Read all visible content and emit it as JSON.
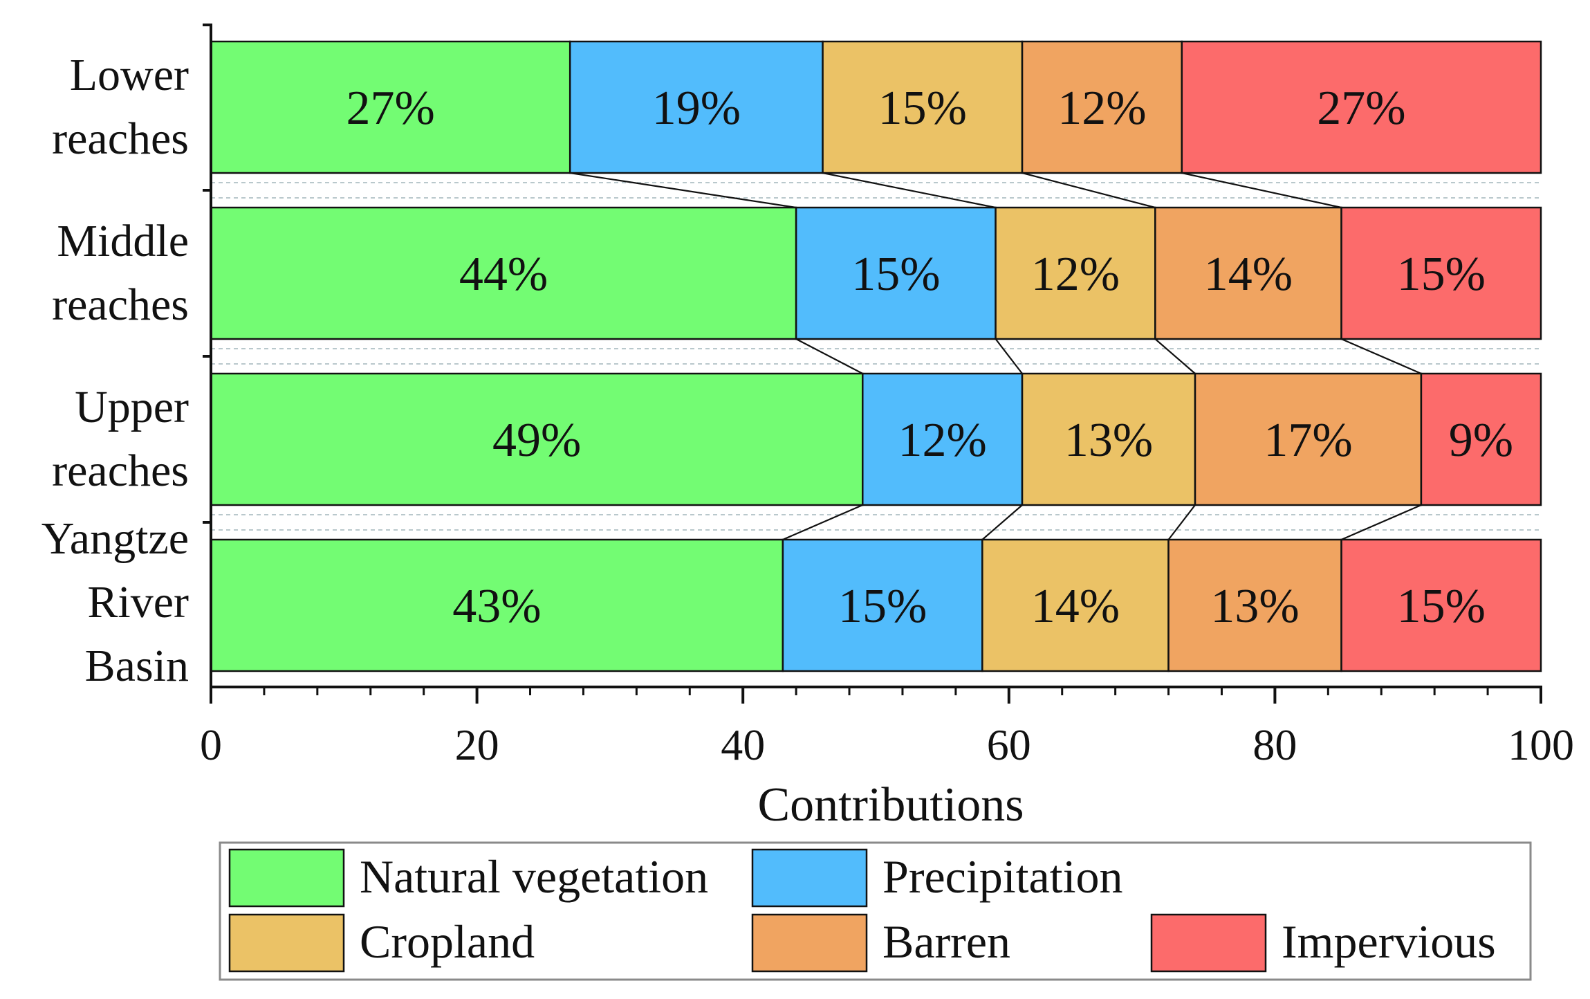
{
  "chart_data": {
    "type": "bar",
    "orientation": "horizontal",
    "stacked": true,
    "categories": [
      [
        "Lower",
        "reaches"
      ],
      [
        "Middle",
        "reaches"
      ],
      [
        "Upper",
        "reaches"
      ],
      [
        "Yangtze",
        "River",
        "Basin"
      ]
    ],
    "series": [
      {
        "name": "Natural vegetation",
        "color": "#73fc73",
        "values": [
          27,
          44,
          49,
          43
        ]
      },
      {
        "name": "Precipitation",
        "color": "#52bcfc",
        "values": [
          19,
          15,
          12,
          15
        ]
      },
      {
        "name": "Cropland",
        "color": "#ebc266",
        "values": [
          15,
          12,
          13,
          14
        ]
      },
      {
        "name": "Barren",
        "color": "#f0a461",
        "values": [
          12,
          14,
          17,
          13
        ]
      },
      {
        "name": "Impervious",
        "color": "#fc6b6b",
        "values": [
          27,
          15,
          9,
          15
        ]
      }
    ],
    "xlabel": "Contributions",
    "ylabel": "",
    "xlim": [
      0,
      100
    ],
    "xticks": [
      "0",
      "20",
      "40",
      "60",
      "80",
      "100"
    ],
    "legend": "bottom",
    "grid": false
  }
}
